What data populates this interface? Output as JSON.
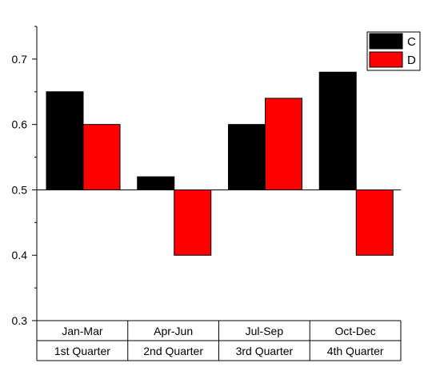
{
  "chart_data": {
    "type": "bar",
    "baseline": 0.5,
    "ylim": [
      0.3,
      0.75
    ],
    "yticks": [
      {
        "value": 0.3,
        "label": "0.3"
      },
      {
        "value": 0.4,
        "label": "0.4"
      },
      {
        "value": 0.5,
        "label": "0.5"
      },
      {
        "value": 0.6,
        "label": "0.6"
      },
      {
        "value": 0.7,
        "label": "0.7"
      }
    ],
    "categories": [
      {
        "label": "Jan-Mar",
        "group": "1st Quarter"
      },
      {
        "label": "Apr-Jun",
        "group": "2nd Quarter"
      },
      {
        "label": "Jul-Sep",
        "group": "3rd Quarter"
      },
      {
        "label": "Oct-Dec",
        "group": "4th Quarter"
      }
    ],
    "series": [
      {
        "name": "C",
        "color": "#000000",
        "values": [
          0.65,
          0.52,
          0.6,
          0.68
        ]
      },
      {
        "name": "D",
        "color": "#ff0000",
        "values": [
          0.6,
          0.4,
          0.64,
          0.4
        ]
      }
    ],
    "legend": "top-right",
    "grid": false
  }
}
